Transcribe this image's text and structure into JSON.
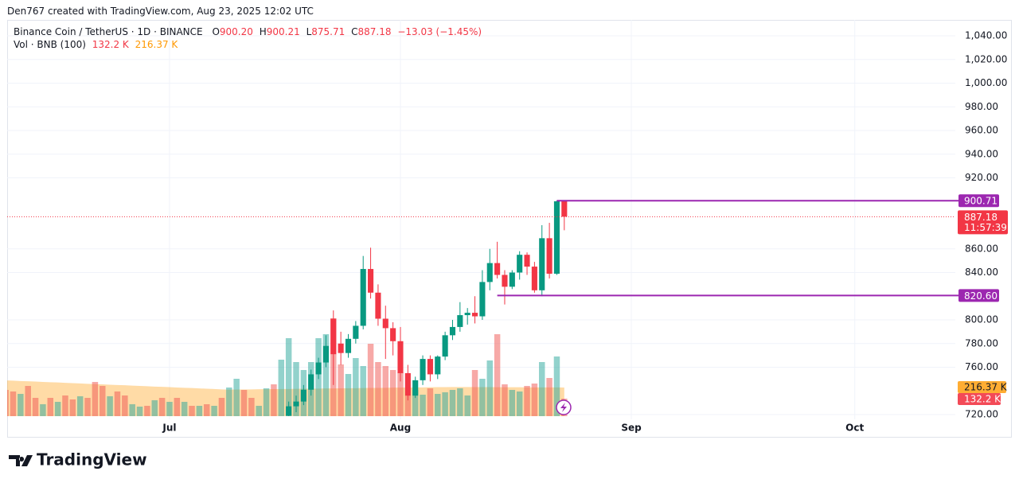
{
  "header": "Den767 created with TradingView.com, Aug 23, 2025 12:02 UTC",
  "footer": {
    "brand": "TradingView"
  },
  "chart_data": {
    "type": "candlestick",
    "title": "Binance Coin / TetherUS · 1D · BINANCE",
    "legend": {
      "o": "O",
      "open": "900.20",
      "h": "H",
      "high": "900.21",
      "l": "L",
      "low": "875.71",
      "c": "C",
      "close": "887.18",
      "change": "−13.03 (−1.45%)"
    },
    "volume_title": "Vol · BNB (100)",
    "volume_value_label": "132.2 K",
    "volume_ma_value_label": "216.37 K",
    "xlim": [
      0.2,
      127.5
    ],
    "xticks": [
      {
        "value": 22,
        "label": "Jul"
      },
      {
        "value": 53,
        "label": "Aug"
      },
      {
        "value": 84,
        "label": "Sep"
      },
      {
        "value": 114,
        "label": "Oct"
      }
    ],
    "ylim": [
      720,
      1040
    ],
    "yticks": [
      {
        "value": 1040,
        "label": "1,040.00"
      },
      {
        "value": 1020,
        "label": "1,020.00"
      },
      {
        "value": 1000,
        "label": "1,000.00"
      },
      {
        "value": 980,
        "label": "980.00"
      },
      {
        "value": 960,
        "label": "960.00"
      },
      {
        "value": 940,
        "label": "940.00"
      },
      {
        "value": 920,
        "label": "920.00"
      },
      {
        "value": 860,
        "label": "860.00"
      },
      {
        "value": 840,
        "label": "840.00"
      },
      {
        "value": 800,
        "label": "800.00"
      },
      {
        "value": 780,
        "label": "780.00"
      },
      {
        "value": 760,
        "label": "760.00"
      },
      {
        "value": 720,
        "label": "720.00"
      }
    ],
    "grid": true,
    "up_color": "#089981",
    "down_color": "#f23645",
    "volume_up_color": "#26a69a",
    "volume_down_color": "#ef5350",
    "ma_color": "#ff9800",
    "open": [
      null,
      null,
      null,
      null,
      null,
      null,
      null,
      null,
      null,
      null,
      null,
      null,
      null,
      null,
      null,
      null,
      null,
      null,
      null,
      null,
      null,
      null,
      null,
      null,
      null,
      null,
      null,
      null,
      null,
      null,
      null,
      null,
      null,
      null,
      null,
      null,
      null,
      null,
      719,
      727,
      731,
      741,
      754,
      764,
      801,
      780,
      772,
      784,
      795,
      843,
      823,
      801,
      793,
      782,
      755,
      736,
      749,
      767,
      754,
      769,
      787,
      794,
      804,
      806,
      803,
      832,
      848,
      838,
      828,
      840,
      855,
      845,
      825,
      869,
      839,
      900.2
    ],
    "high": [
      null,
      null,
      null,
      null,
      null,
      null,
      null,
      null,
      null,
      null,
      null,
      null,
      null,
      null,
      null,
      null,
      null,
      null,
      null,
      null,
      null,
      null,
      null,
      null,
      null,
      null,
      null,
      null,
      null,
      null,
      null,
      null,
      null,
      null,
      null,
      null,
      null,
      null,
      731,
      736,
      745,
      758,
      768,
      787,
      808,
      790,
      788,
      799,
      854,
      861,
      830,
      812,
      798,
      794,
      762,
      752,
      770,
      770,
      770,
      790,
      800,
      815,
      810,
      820,
      842,
      860,
      866,
      842,
      842,
      858,
      857,
      849,
      880,
      882,
      900.71,
      900.21
    ],
    "low": [
      null,
      null,
      null,
      null,
      null,
      null,
      null,
      null,
      null,
      null,
      null,
      null,
      null,
      null,
      null,
      null,
      null,
      null,
      null,
      null,
      null,
      null,
      null,
      null,
      null,
      null,
      null,
      null,
      null,
      null,
      null,
      null,
      null,
      null,
      null,
      null,
      null,
      null,
      716,
      722,
      728,
      736,
      750,
      760,
      745,
      762,
      768,
      780,
      792,
      818,
      795,
      767,
      770,
      748,
      732,
      734,
      745,
      748,
      750,
      766,
      783,
      790,
      796,
      797,
      800,
      825,
      835,
      813,
      826,
      834,
      838,
      823,
      820,
      835,
      838,
      875.71
    ],
    "close": [
      null,
      null,
      null,
      null,
      null,
      null,
      null,
      null,
      null,
      null,
      null,
      null,
      null,
      null,
      null,
      null,
      null,
      null,
      null,
      null,
      null,
      null,
      null,
      null,
      null,
      null,
      null,
      null,
      null,
      null,
      null,
      null,
      null,
      null,
      null,
      null,
      null,
      null,
      727,
      731,
      741,
      754,
      764,
      778,
      771,
      772,
      784,
      795,
      843,
      823,
      801,
      793,
      782,
      755,
      736,
      749,
      767,
      754,
      769,
      787,
      794,
      804,
      806,
      803,
      832,
      848,
      838,
      828,
      840,
      855,
      845,
      825,
      869,
      839,
      900.2,
      887.18
    ],
    "volume": [
      198,
      186,
      168,
      228,
      138,
      90,
      138,
      108,
      156,
      126,
      150,
      138,
      258,
      228,
      150,
      186,
      156,
      90,
      72,
      78,
      120,
      138,
      108,
      138,
      108,
      78,
      78,
      90,
      78,
      138,
      216,
      282,
      198,
      138,
      78,
      210,
      240,
      426,
      588,
      408,
      348,
      408,
      588,
      618,
      738,
      390,
      318,
      438,
      378,
      546,
      408,
      378,
      348,
      330,
      156,
      198,
      162,
      210,
      168,
      180,
      198,
      210,
      156,
      348,
      282,
      420,
      618,
      240,
      198,
      186,
      228,
      246,
      408,
      288,
      450,
      132.2
    ],
    "volume_ma": [
      270,
      268,
      265,
      263,
      261,
      258,
      256,
      254,
      251,
      249,
      247,
      244,
      242,
      240,
      237,
      235,
      233,
      230,
      228,
      226,
      223,
      221,
      219,
      216,
      214,
      212,
      209,
      207,
      205,
      202,
      200,
      201,
      201,
      202,
      203,
      203,
      204,
      205,
      205,
      206,
      207,
      207,
      208,
      209,
      209,
      210,
      211,
      211,
      212,
      213,
      213,
      214,
      215,
      215,
      216,
      217,
      217,
      218,
      219,
      219,
      220,
      220,
      220,
      219,
      219,
      219,
      218,
      218,
      218,
      218,
      217,
      217,
      217,
      217,
      217,
      216.37
    ],
    "up": [
      false,
      false,
      true,
      false,
      false,
      true,
      false,
      true,
      false,
      false,
      true,
      false,
      false,
      false,
      true,
      false,
      false,
      true,
      true,
      false,
      true,
      false,
      true,
      false,
      true,
      false,
      true,
      false,
      true,
      false,
      true,
      true,
      false,
      false,
      true,
      true,
      false,
      true,
      true,
      true,
      true,
      true,
      true,
      true,
      false,
      false,
      true,
      true,
      true,
      false,
      false,
      false,
      false,
      false,
      false,
      true,
      true,
      false,
      true,
      true,
      true,
      true,
      true,
      false,
      true,
      true,
      false,
      false,
      true,
      true,
      false,
      false,
      true,
      false,
      true,
      false
    ],
    "hlines": [
      {
        "value": 900.71,
        "from": 74,
        "color": "#9c27b0"
      },
      {
        "value": 820.6,
        "label": "820.60",
        "from": 66,
        "color": "#9c27b0"
      }
    ],
    "last_price": {
      "value": 887.18,
      "countdown": "11:57:39"
    }
  }
}
